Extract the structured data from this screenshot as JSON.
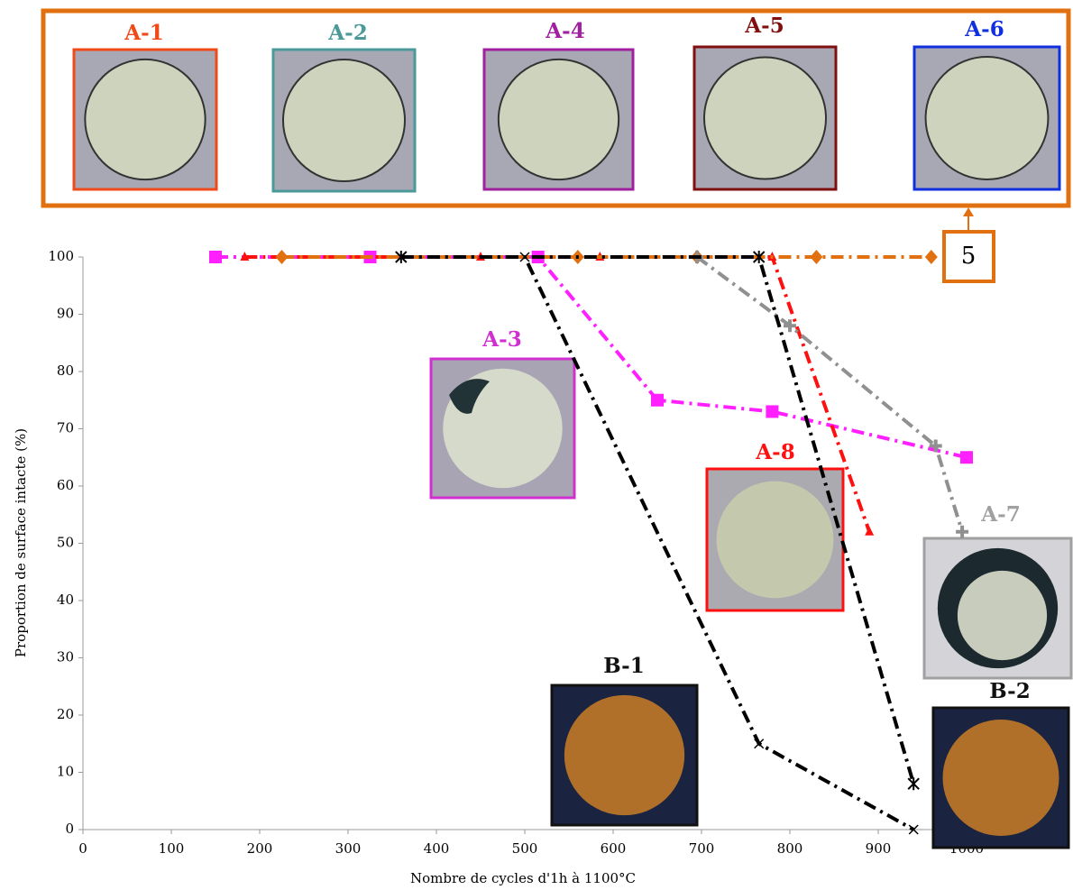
{
  "chart_data": {
    "type": "line",
    "xlabel": "Nombre de cycles d'1h à 1100°C",
    "ylabel": "Proportion de surface intacte (%)",
    "xlim": [
      0,
      1100
    ],
    "ylim": [
      0,
      100
    ],
    "xticks": [
      0,
      100,
      200,
      300,
      400,
      500,
      600,
      700,
      800,
      900,
      1000
    ],
    "yticks": [
      0,
      10,
      20,
      30,
      40,
      50,
      60,
      70,
      80,
      90,
      100
    ],
    "series": [
      {
        "color": "#ff1fff",
        "marker": "square",
        "x": [
          150,
          325,
          515,
          650,
          780,
          1000
        ],
        "values": [
          100,
          100,
          100,
          75,
          73,
          65
        ]
      },
      {
        "color": "#ff1010",
        "marker": "triangle",
        "x": [
          183,
          450,
          585,
          780,
          890
        ],
        "values": [
          100,
          100,
          100,
          100,
          52
        ]
      },
      {
        "color": "#e07010",
        "marker": "diamond",
        "x": [
          225,
          560,
          695,
          830,
          960
        ],
        "values": [
          100,
          100,
          100,
          100,
          100
        ]
      },
      {
        "color": "#909090",
        "marker": "plus",
        "x": [
          695,
          800,
          965,
          995
        ],
        "values": [
          100,
          88,
          67,
          52
        ]
      },
      {
        "color": "#000000",
        "marker": "x",
        "x": [
          360,
          500,
          765,
          940
        ],
        "values": [
          100,
          100,
          15,
          0
        ]
      },
      {
        "color": "#000000",
        "marker": "star",
        "x": [
          360,
          765,
          940
        ],
        "values": [
          100,
          100,
          8
        ]
      }
    ],
    "photos": [
      {
        "label": "A-1",
        "color": "#f04a1a"
      },
      {
        "label": "A-2",
        "color": "#4a9a9a"
      },
      {
        "label": "A-4",
        "color": "#a020a0"
      },
      {
        "label": "A-5",
        "color": "#801010"
      },
      {
        "label": "A-6",
        "color": "#1030e0"
      },
      {
        "label": "A-3",
        "color": "#d030d0"
      },
      {
        "label": "A-8",
        "color": "#ff1010"
      },
      {
        "label": "A-7",
        "color": "#a0a0a0"
      },
      {
        "label": "B-1",
        "color": "#111111"
      },
      {
        "label": "B-2",
        "color": "#111111"
      }
    ],
    "callout": "5",
    "callout_color": "#e07010"
  }
}
